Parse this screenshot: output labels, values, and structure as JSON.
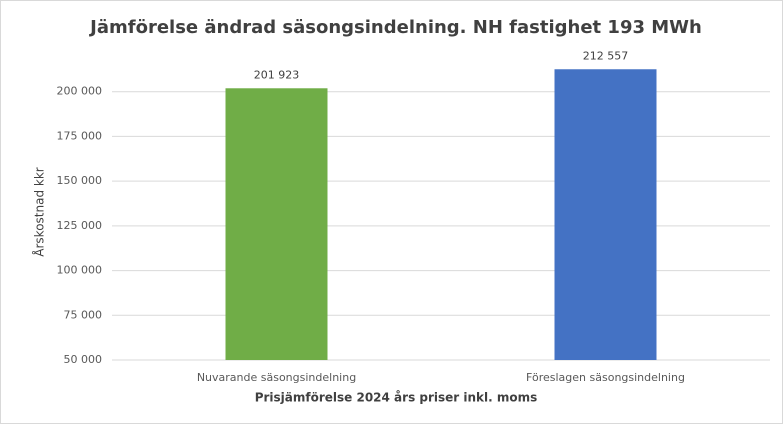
{
  "chart_data": {
    "type": "bar",
    "title": "Jämförelse ändrad säsongsindelning. NH fastighet 193 MWh",
    "xlabel": "Prisjämförelse 2024 års priser inkl. moms",
    "ylabel": "Årskostnad kkr",
    "categories": [
      "Nuvarande säsongsindelning",
      "Föreslagen säsongsindelning"
    ],
    "values": [
      201923,
      212557
    ],
    "value_labels": [
      "201 923",
      "212 557"
    ],
    "colors": [
      "#70ad47",
      "#4472c4"
    ],
    "ylim": [
      50000,
      225000
    ],
    "yticks": [
      {
        "value": 50000,
        "label": "50 000"
      },
      {
        "value": 75000,
        "label": "75 000"
      },
      {
        "value": 100000,
        "label": "100 000"
      },
      {
        "value": 125000,
        "label": "125 000"
      },
      {
        "value": 150000,
        "label": "150 000"
      },
      {
        "value": 175000,
        "label": "175 000"
      },
      {
        "value": 200000,
        "label": "200 000"
      }
    ],
    "grid": true
  }
}
